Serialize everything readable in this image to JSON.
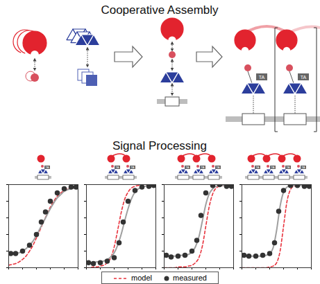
{
  "titles": {
    "top": "Cooperative Assembly",
    "bottom": "Signal Processing"
  },
  "activation_label": "TA",
  "legend": "bottom",
  "chart_data": [
    {
      "type": "line",
      "xlim": [
        0,
        10
      ],
      "ylim": [
        0,
        1
      ],
      "xticks": [
        0,
        2,
        4,
        6,
        8,
        10
      ],
      "yticks": [
        0,
        0.2,
        0.4,
        0.6,
        0.8,
        1
      ],
      "tick_labels": false,
      "series": [
        {
          "name": "model",
          "color": "#e8323c",
          "line_style": "dashed",
          "x": [
            0,
            0.5,
            1,
            1.5,
            2,
            2.5,
            3,
            3.5,
            4,
            4.5,
            5,
            5.5,
            6,
            6.5,
            7,
            7.5,
            8,
            8.5,
            9,
            9.5,
            10
          ],
          "values": [
            0.03,
            0.04,
            0.05,
            0.07,
            0.1,
            0.14,
            0.2,
            0.27,
            0.36,
            0.45,
            0.55,
            0.64,
            0.73,
            0.8,
            0.86,
            0.9,
            0.93,
            0.95,
            0.96,
            0.97,
            0.98
          ]
        },
        {
          "type": "line",
          "color": "#a0a0a0",
          "line_style": "solid",
          "x": [
            0,
            0.5,
            1,
            1.5,
            2,
            2.5,
            3,
            3.5,
            4,
            4.5,
            5,
            5.5,
            6,
            6.5,
            7,
            7.5,
            8,
            8.5,
            9,
            9.5,
            10
          ],
          "values": [
            0.16,
            0.16,
            0.17,
            0.18,
            0.2,
            0.23,
            0.27,
            0.32,
            0.39,
            0.47,
            0.55,
            0.63,
            0.71,
            0.78,
            0.84,
            0.88,
            0.92,
            0.94,
            0.95,
            0.96,
            0.97
          ]
        },
        {
          "name": "measured",
          "type": "scatter",
          "color": "#333333",
          "marker": "circle",
          "x": [
            0.3,
            1,
            2,
            3,
            4,
            4.7,
            5.3,
            6,
            7,
            8,
            9,
            9.7
          ],
          "values": [
            0.17,
            0.17,
            0.2,
            0.27,
            0.4,
            0.55,
            0.67,
            0.8,
            0.9,
            0.95,
            0.97,
            0.97
          ]
        }
      ]
    },
    {
      "type": "line",
      "xlim": [
        0,
        10
      ],
      "ylim": [
        0,
        1
      ],
      "xticks": [
        0,
        2,
        4,
        6,
        8,
        10
      ],
      "yticks": [
        0,
        0.2,
        0.4,
        0.6,
        0.8,
        1
      ],
      "tick_labels": false,
      "series": [
        {
          "name": "model",
          "color": "#e8323c",
          "line_style": "dashed",
          "x": [
            0,
            0.5,
            1,
            1.5,
            2,
            2.5,
            3,
            3.5,
            4,
            4.5,
            5,
            5.5,
            6,
            6.5,
            7,
            7.5,
            8,
            8.5,
            9,
            9.5,
            10
          ],
          "values": [
            0,
            0,
            0.01,
            0.01,
            0.02,
            0.03,
            0.06,
            0.12,
            0.25,
            0.45,
            0.66,
            0.82,
            0.91,
            0.96,
            0.98,
            0.99,
            1,
            1,
            1,
            1,
            1
          ]
        },
        {
          "type": "line",
          "color": "#a0a0a0",
          "line_style": "solid",
          "x": [
            0,
            0.5,
            1,
            1.5,
            2,
            2.5,
            3,
            3.5,
            4,
            4.5,
            5,
            5.5,
            6,
            6.5,
            7,
            7.5,
            8,
            8.5,
            9,
            9.5,
            10
          ],
          "values": [
            0.06,
            0.06,
            0.06,
            0.07,
            0.07,
            0.08,
            0.1,
            0.13,
            0.18,
            0.27,
            0.4,
            0.56,
            0.71,
            0.83,
            0.91,
            0.95,
            0.97,
            0.98,
            0.99,
            0.99,
            0.99
          ]
        },
        {
          "name": "measured",
          "type": "scatter",
          "color": "#333333",
          "marker": "circle",
          "x": [
            0.3,
            1,
            2,
            3,
            4,
            4.7,
            5.3,
            6,
            7,
            8,
            9,
            9.7
          ],
          "values": [
            0.06,
            0.05,
            0.06,
            0.08,
            0.12,
            0.3,
            0.55,
            0.8,
            0.93,
            0.97,
            0.98,
            0.99
          ]
        }
      ]
    },
    {
      "type": "line",
      "xlim": [
        0,
        10
      ],
      "ylim": [
        0,
        1
      ],
      "xticks": [
        0,
        2,
        4,
        6,
        8,
        10
      ],
      "yticks": [
        0,
        0.2,
        0.4,
        0.6,
        0.8,
        1
      ],
      "tick_labels": false,
      "series": [
        {
          "name": "model",
          "color": "#e8323c",
          "line_style": "dashed",
          "x": [
            0,
            0.5,
            1,
            1.5,
            2,
            2.5,
            3,
            3.5,
            4,
            4.5,
            5,
            5.5,
            6,
            6.5,
            7,
            7.5,
            8,
            8.5,
            9,
            9.5,
            10
          ],
          "values": [
            0,
            0,
            0,
            0,
            0.01,
            0.01,
            0.01,
            0.02,
            0.03,
            0.06,
            0.12,
            0.26,
            0.5,
            0.74,
            0.89,
            0.96,
            0.98,
            0.99,
            1,
            1,
            1
          ]
        },
        {
          "type": "line",
          "color": "#a0a0a0",
          "line_style": "solid",
          "x": [
            0,
            0.5,
            1,
            1.5,
            2,
            2.5,
            3,
            3.5,
            4,
            4.5,
            5,
            5.5,
            6,
            6.5,
            7,
            7.5,
            8,
            8.5,
            9,
            9.5,
            10
          ],
          "values": [
            0.14,
            0.14,
            0.14,
            0.14,
            0.14,
            0.15,
            0.15,
            0.16,
            0.19,
            0.25,
            0.37,
            0.56,
            0.76,
            0.89,
            0.95,
            0.98,
            0.99,
            0.99,
            0.99,
            0.99,
            0.99
          ]
        },
        {
          "name": "measured",
          "type": "scatter",
          "color": "#333333",
          "marker": "circle",
          "x": [
            0.3,
            1,
            2,
            3,
            4,
            4.7,
            5.3,
            6,
            7,
            8,
            9,
            9.7
          ],
          "values": [
            0.15,
            0.13,
            0.14,
            0.15,
            0.2,
            0.33,
            0.63,
            0.9,
            0.99,
            1.0,
            0.98,
            0.98
          ]
        }
      ]
    },
    {
      "type": "line",
      "xlim": [
        0,
        10
      ],
      "ylim": [
        0,
        1
      ],
      "xticks": [
        0,
        2,
        4,
        6,
        8,
        10
      ],
      "yticks": [
        0,
        0.2,
        0.4,
        0.6,
        0.8,
        1
      ],
      "tick_labels": false,
      "series": [
        {
          "name": "model",
          "color": "#e8323c",
          "line_style": "dashed",
          "x": [
            0,
            0.5,
            1,
            1.5,
            2,
            2.5,
            3,
            3.5,
            4,
            4.5,
            5,
            5.5,
            6,
            6.5,
            7,
            7.5,
            8,
            8.5,
            9,
            9.5,
            10
          ],
          "values": [
            0,
            0,
            0,
            0,
            0,
            0,
            0,
            0,
            0.01,
            0.02,
            0.06,
            0.2,
            0.5,
            0.8,
            0.94,
            0.98,
            0.99,
            1,
            1,
            1,
            1
          ]
        },
        {
          "type": "line",
          "color": "#a0a0a0",
          "line_style": "solid",
          "x": [
            0,
            0.5,
            1,
            1.5,
            2,
            2.5,
            3,
            3.5,
            4,
            4.5,
            5,
            5.5,
            6,
            6.5,
            7,
            7.5,
            8,
            8.5,
            9,
            9.5,
            10
          ],
          "values": [
            0.14,
            0.14,
            0.14,
            0.14,
            0.14,
            0.14,
            0.14,
            0.15,
            0.17,
            0.24,
            0.45,
            0.74,
            0.91,
            0.97,
            0.99,
            0.99,
            0.99,
            0.99,
            0.99,
            0.99,
            0.99
          ]
        },
        {
          "name": "measured",
          "type": "scatter",
          "color": "#333333",
          "marker": "circle",
          "x": [
            0.3,
            1,
            2,
            3,
            4,
            4.7,
            5.3,
            6,
            7,
            8,
            9,
            9.7
          ],
          "values": [
            0.15,
            0.14,
            0.14,
            0.15,
            0.17,
            0.3,
            0.68,
            0.93,
            0.99,
            0.99,
            0.98,
            0.98
          ]
        }
      ]
    }
  ]
}
